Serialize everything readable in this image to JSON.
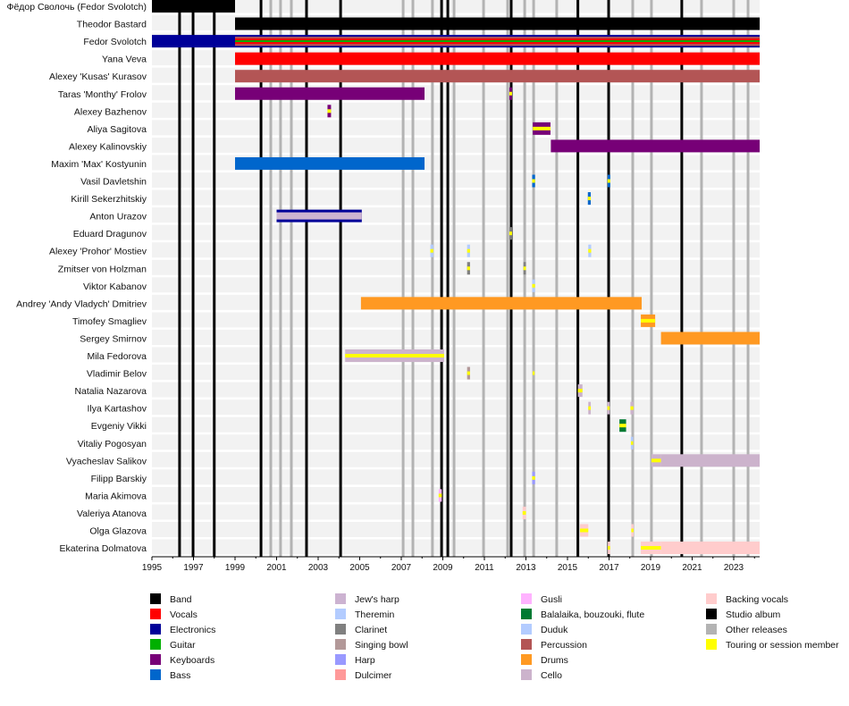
{
  "chart_data": {
    "type": "timeline",
    "x_range": [
      1995,
      2024.25
    ],
    "x_ticks": [
      "1995",
      "1997",
      "1999",
      "2001",
      "2003",
      "2005",
      "2007",
      "2009",
      "2011",
      "2013",
      "2015",
      "2017",
      "2019",
      "2021",
      "2023"
    ],
    "grid": false,
    "legend_placement": "bottom",
    "colors": {
      "band": "#000000",
      "vocals": "#ff0000",
      "electronics": "#000099",
      "guitar": "#00b000",
      "keyboards": "#770077",
      "bass": "#0066cc",
      "jews_harp": "#ccb3d1",
      "theremin": "#b3ccff",
      "clarinet": "#808080",
      "singing_bowl": "#b39999",
      "harp": "#9999ff",
      "dulcimer": "#ff9999",
      "gusli": "#ffb3ff",
      "balalaika": "#007a33",
      "duduk": "#b3ccff",
      "percussion": "#b35555",
      "drums": "#ff9922",
      "cello": "#ccb3cc",
      "backing_vocals": "#ffcccc",
      "studio_album": "#000000",
      "other_release": "#b3b3b3",
      "touring": "#ffff00"
    },
    "legend": [
      {
        "key": "band",
        "label": "Band"
      },
      {
        "key": "vocals",
        "label": "Vocals"
      },
      {
        "key": "electronics",
        "label": "Electronics"
      },
      {
        "key": "guitar",
        "label": "Guitar"
      },
      {
        "key": "keyboards",
        "label": "Keyboards"
      },
      {
        "key": "bass",
        "label": "Bass"
      },
      {
        "key": "jews_harp",
        "label": "Jew's harp"
      },
      {
        "key": "theremin",
        "label": "Theremin"
      },
      {
        "key": "clarinet",
        "label": "Clarinet"
      },
      {
        "key": "singing_bowl",
        "label": "Singing bowl"
      },
      {
        "key": "harp",
        "label": "Harp"
      },
      {
        "key": "dulcimer",
        "label": "Dulcimer"
      },
      {
        "key": "gusli",
        "label": "Gusli"
      },
      {
        "key": "balalaika",
        "label": "Balalaika, bouzouki, flute"
      },
      {
        "key": "duduk",
        "label": "Duduk"
      },
      {
        "key": "percussion",
        "label": "Percussion"
      },
      {
        "key": "drums",
        "label": "Drums"
      },
      {
        "key": "cello",
        "label": "Cello"
      },
      {
        "key": "backing_vocals",
        "label": "Backing vocals"
      },
      {
        "key": "studio_album",
        "label": "Studio album"
      },
      {
        "key": "other_release",
        "label": "Other releases"
      },
      {
        "key": "touring",
        "label": "Touring or session member"
      }
    ],
    "studio_albums": [
      1996.33,
      1996.98,
      1998.0,
      2000.25,
      2002.44,
      2004.08,
      2008.94,
      2009.24,
      2012.29,
      2015.5,
      2016.98,
      2020.5
    ],
    "other_releases": [
      2000.72,
      2001.19,
      2001.71,
      2007.09,
      2007.56,
      2008.5,
      2009.54,
      2010.96,
      2012.12,
      2012.94,
      2013.37,
      2014.48,
      2018.14,
      2019.04,
      2021.45,
      2023.0,
      2023.69
    ],
    "rows": [
      {
        "label": "Фёдор Сволочь (Fedor Svolotch)",
        "segments": [
          {
            "role": "band",
            "from": 1995,
            "to": 1999
          }
        ]
      },
      {
        "label": "Theodor Bastard",
        "segments": [
          {
            "role": "band",
            "from": 1999,
            "to": 2024.25
          }
        ]
      },
      {
        "label": "Fedor Svolotch",
        "segments": [
          {
            "role": "electronics",
            "from": 1995,
            "to": 2024.25
          },
          {
            "role": "electronics",
            "from": 1999,
            "to": 2024.25,
            "stripes": [
              "percussion",
              "vocals",
              "guitar",
              "vocals",
              "percussion"
            ]
          }
        ]
      },
      {
        "label": "Yana Veva",
        "segments": [
          {
            "role": "vocals",
            "from": 1999,
            "to": 2024.25
          }
        ]
      },
      {
        "label": "Alexey 'Kusas' Kurasov",
        "segments": [
          {
            "role": "percussion",
            "from": 1999,
            "to": 2024.25
          }
        ]
      },
      {
        "label": "Taras 'Monthy' Frolov",
        "segments": [
          {
            "role": "keyboards",
            "from": 1999,
            "to": 2008.12
          },
          {
            "role": "keyboards",
            "from": 2012.2,
            "to": 2012.33,
            "touring": true
          }
        ]
      },
      {
        "label": "Alexey Bazhenov",
        "segments": [
          {
            "role": "keyboards",
            "from": 2003.45,
            "to": 2003.62,
            "touring": true
          }
        ]
      },
      {
        "label": "Aliya Sagitova",
        "segments": [
          {
            "role": "keyboards",
            "from": 2013.33,
            "to": 2014.18,
            "touring": true
          }
        ]
      },
      {
        "label": "Alexey Kalinovskiy",
        "segments": [
          {
            "role": "keyboards",
            "from": 2014.2,
            "to": 2024.25
          }
        ]
      },
      {
        "label": "Maxim 'Max' Kostyunin",
        "segments": [
          {
            "role": "bass",
            "from": 1999,
            "to": 2008.12
          }
        ]
      },
      {
        "label": "Vasil Davletshin",
        "segments": [
          {
            "role": "bass",
            "from": 2013.3,
            "to": 2013.44,
            "touring": true
          },
          {
            "role": "bass",
            "from": 2016.93,
            "to": 2017.06,
            "touring": true
          }
        ]
      },
      {
        "label": "Kirill Sekerzhitskiy",
        "segments": [
          {
            "role": "bass",
            "from": 2015.98,
            "to": 2016.12,
            "touring": true
          }
        ]
      },
      {
        "label": "Anton Urazov",
        "segments": [
          {
            "role": "jews_harp",
            "from": 2001.0,
            "to": 2005.1,
            "outline": "electronics"
          }
        ]
      },
      {
        "label": "Eduard Dragunov",
        "segments": [
          {
            "role": "clarinet",
            "from": 2012.2,
            "to": 2012.33,
            "touring": true
          }
        ]
      },
      {
        "label": "Alexey 'Prohor' Mostiev",
        "segments": [
          {
            "role": "theremin",
            "from": 2008.4,
            "to": 2008.54,
            "touring": true
          },
          {
            "role": "theremin",
            "from": 2010.17,
            "to": 2010.31,
            "touring": true
          },
          {
            "role": "theremin",
            "from": 2016.0,
            "to": 2016.14,
            "touring": true
          }
        ]
      },
      {
        "label": "Zmitser von Holzman",
        "segments": [
          {
            "role": "clarinet",
            "from": 2010.17,
            "to": 2010.31,
            "touring": true
          },
          {
            "role": "clarinet",
            "from": 2012.88,
            "to": 2013.0,
            "touring": true
          }
        ]
      },
      {
        "label": "Viktor Kabanov",
        "segments": [
          {
            "role": "theremin",
            "from": 2013.3,
            "to": 2013.44,
            "touring": true
          }
        ]
      },
      {
        "label": "Andrey 'Andy Vladych' Dmitriev",
        "segments": [
          {
            "role": "drums",
            "from": 2005.06,
            "to": 2018.57
          }
        ]
      },
      {
        "label": "Timofey Smagliev",
        "segments": [
          {
            "role": "drums",
            "from": 2018.53,
            "to": 2019.22,
            "touring": true
          }
        ]
      },
      {
        "label": "Sergey Smirnov",
        "segments": [
          {
            "role": "drums",
            "from": 2019.5,
            "to": 2024.25
          }
        ]
      },
      {
        "label": "Mila Fedorova",
        "segments": [
          {
            "role": "cello",
            "from": 2004.3,
            "to": 2009.06,
            "touring": true
          }
        ]
      },
      {
        "label": "Vladimir Belov",
        "segments": [
          {
            "role": "singing_bowl",
            "from": 2010.17,
            "to": 2010.31,
            "touring": true
          },
          {
            "role": "touring",
            "from": 2013.32,
            "to": 2013.42
          }
        ]
      },
      {
        "label": "Natalia Nazarova",
        "segments": [
          {
            "role": "cello",
            "from": 2015.5,
            "to": 2015.72,
            "touring": true
          }
        ]
      },
      {
        "label": "Ilya Kartashov",
        "segments": [
          {
            "role": "cello",
            "from": 2016.0,
            "to": 2016.12,
            "touring": true
          },
          {
            "role": "cello",
            "from": 2016.92,
            "to": 2017.03,
            "touring": true
          },
          {
            "role": "cello",
            "from": 2018.03,
            "to": 2018.17,
            "touring": true
          }
        ]
      },
      {
        "label": "Evgeniy Vikki",
        "segments": [
          {
            "role": "balalaika",
            "from": 2017.5,
            "to": 2017.82,
            "touring": true
          }
        ]
      },
      {
        "label": "Vitaliy Pogosyan",
        "segments": [
          {
            "role": "duduk",
            "from": 2018.05,
            "to": 2018.16,
            "touring": true
          }
        ]
      },
      {
        "label": "Vyacheslav Salikov",
        "segments": [
          {
            "role": "cello",
            "from": 2019.04,
            "to": 2019.5,
            "touring": true
          },
          {
            "role": "cello",
            "from": 2019.5,
            "to": 2024.25
          }
        ]
      },
      {
        "label": "Filipp Barskiy",
        "segments": [
          {
            "role": "harp",
            "from": 2013.3,
            "to": 2013.44,
            "touring": true
          }
        ]
      },
      {
        "label": "Maria Akimova",
        "segments": [
          {
            "role": "gusli",
            "from": 2008.8,
            "to": 2008.95,
            "touring": true
          }
        ]
      },
      {
        "label": "Valeriya Atanova",
        "segments": [
          {
            "role": "backing_vocals",
            "from": 2012.84,
            "to": 2013.0,
            "touring": true
          }
        ]
      },
      {
        "label": "Olga Glazova",
        "segments": [
          {
            "role": "backing_vocals",
            "from": 2015.6,
            "to": 2016.0,
            "touring": true
          },
          {
            "role": "backing_vocals",
            "from": 2018.07,
            "to": 2018.18,
            "touring": true
          }
        ]
      },
      {
        "label": "Ekaterina Dolmatova",
        "segments": [
          {
            "role": "backing_vocals",
            "from": 2016.94,
            "to": 2017.05,
            "touring": true
          },
          {
            "role": "backing_vocals",
            "from": 2018.53,
            "to": 2019.5,
            "touring": true
          },
          {
            "role": "backing_vocals",
            "from": 2019.5,
            "to": 2024.25
          }
        ]
      }
    ]
  }
}
